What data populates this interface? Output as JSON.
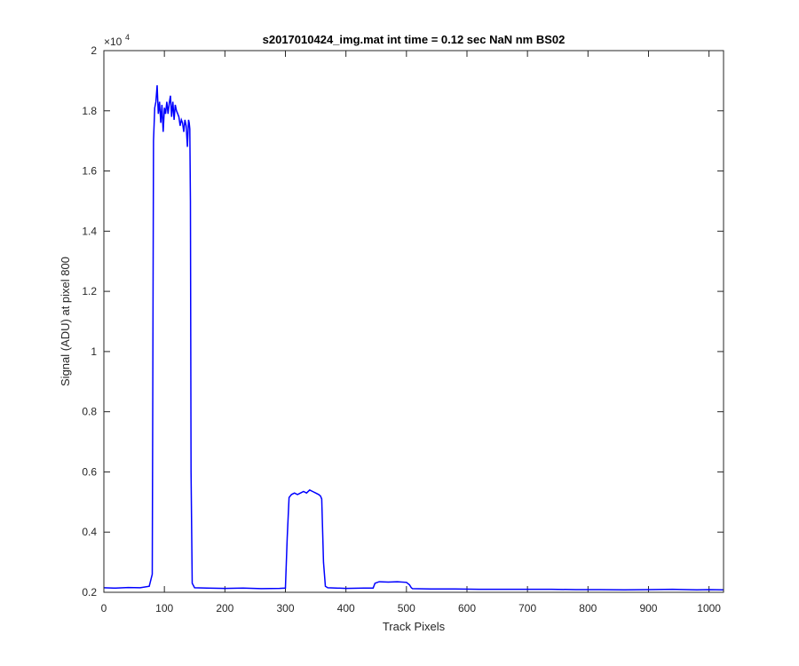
{
  "chart_data": {
    "type": "line",
    "title": "s2017010424_img.mat int time = 0.12 sec  NaN nm BS02",
    "xlabel": "Track Pixels",
    "ylabel": "Signal (ADU) at pixel 800",
    "xlim": [
      0,
      1024
    ],
    "ylim": [
      2000,
      20000
    ],
    "y_exponent_base": "×10",
    "y_exponent_power": "4",
    "x_ticks": [
      0,
      100,
      200,
      300,
      400,
      500,
      600,
      700,
      800,
      900,
      1000
    ],
    "x_tick_labels": [
      "0",
      "100",
      "200",
      "300",
      "400",
      "500",
      "600",
      "700",
      "800",
      "900",
      "1000"
    ],
    "y_ticks": [
      2000,
      4000,
      6000,
      8000,
      10000,
      12000,
      14000,
      16000,
      18000,
      20000
    ],
    "y_tick_labels": [
      "0.2",
      "0.4",
      "0.6",
      "0.8",
      "1",
      "1.2",
      "1.4",
      "1.6",
      "1.8",
      "2"
    ],
    "grid": false,
    "series": [
      {
        "color": "#0000ff",
        "x": [
          0,
          20,
          40,
          60,
          75,
          80,
          82,
          84,
          86,
          88,
          90,
          92,
          94,
          96,
          98,
          100,
          102,
          104,
          106,
          108,
          110,
          112,
          114,
          116,
          118,
          120,
          122,
          124,
          126,
          128,
          130,
          132,
          134,
          136,
          138,
          140,
          141,
          142,
          143,
          144,
          146,
          150,
          170,
          200,
          230,
          260,
          290,
          300,
          303,
          306,
          310,
          315,
          320,
          325,
          330,
          335,
          340,
          345,
          350,
          355,
          358,
          360,
          363,
          366,
          370,
          400,
          430,
          445,
          448,
          455,
          470,
          485,
          500,
          505,
          508,
          510,
          540,
          580,
          620,
          660,
          700,
          740,
          780,
          820,
          860,
          900,
          940,
          980,
          1000,
          1024
        ],
        "y": [
          2150,
          2140,
          2160,
          2150,
          2200,
          2600,
          17000,
          18100,
          18300,
          18850,
          17900,
          18300,
          17600,
          18200,
          17300,
          18100,
          17900,
          18300,
          17900,
          18250,
          18500,
          17800,
          18300,
          17700,
          18200,
          18000,
          17900,
          17800,
          17500,
          17700,
          17600,
          17300,
          17700,
          17500,
          16800,
          17700,
          17600,
          17400,
          15000,
          6000,
          2300,
          2150,
          2140,
          2130,
          2140,
          2120,
          2130,
          2140,
          3800,
          5150,
          5250,
          5300,
          5250,
          5300,
          5350,
          5300,
          5400,
          5350,
          5300,
          5250,
          5200,
          5100,
          3000,
          2200,
          2150,
          2130,
          2140,
          2140,
          2300,
          2350,
          2340,
          2350,
          2330,
          2250,
          2150,
          2120,
          2110,
          2110,
          2100,
          2100,
          2100,
          2100,
          2090,
          2090,
          2080,
          2090,
          2100,
          2080,
          2090,
          2080
        ]
      }
    ]
  }
}
